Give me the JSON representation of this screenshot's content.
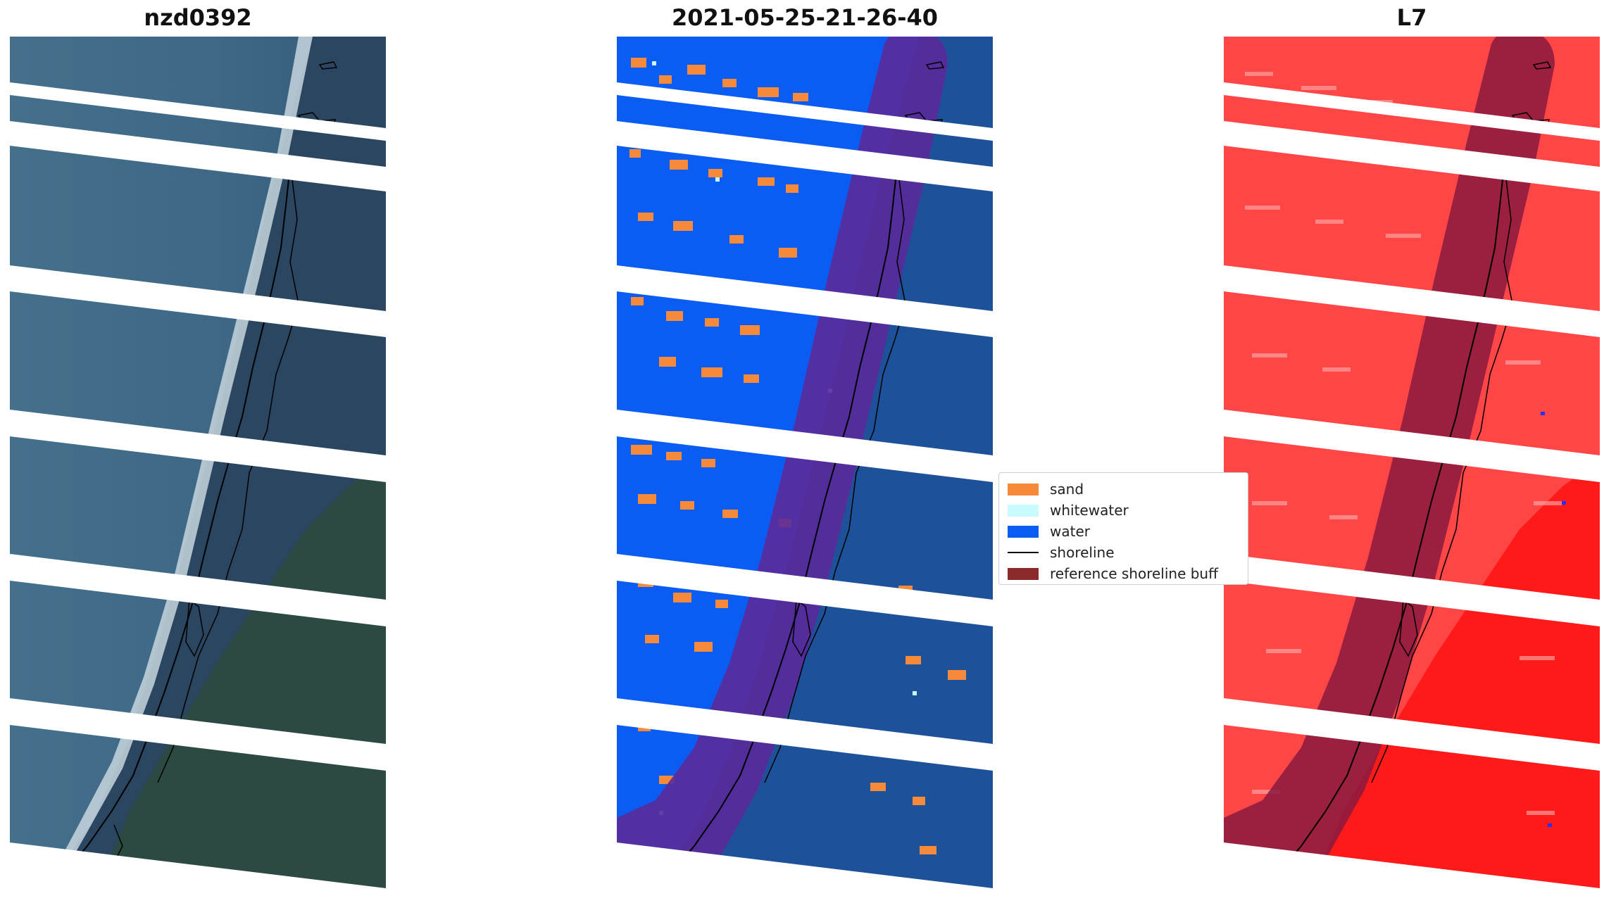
{
  "panels": [
    {
      "id": "rgb",
      "title": "nzd0392"
    },
    {
      "id": "classified",
      "title": "2021-05-25-21-26-40"
    },
    {
      "id": "index",
      "title": "L7"
    }
  ],
  "legend": {
    "entries": [
      {
        "label": "sand",
        "color": "#f58a3a",
        "kind": "patch"
      },
      {
        "label": "whitewater",
        "color": "#c8fbfb",
        "kind": "patch"
      },
      {
        "label": "water",
        "color": "#0a5cf2",
        "kind": "patch"
      },
      {
        "label": "shoreline",
        "color": "#000000",
        "kind": "line"
      },
      {
        "label": "reference shoreline buff",
        "color": "#8b2a2a",
        "kind": "patch"
      }
    ]
  },
  "colors": {
    "sea": "#3f6585",
    "land": "#2d4a3c",
    "beach": "#c9d6dd",
    "sand": "#f58a3a",
    "water": "#0a5cf2",
    "buffer_on_water": "#5a2a9a",
    "buffer_on_index": "#8a1a3f",
    "index_base": "#ff3a3a",
    "gap": "#ffffff"
  }
}
